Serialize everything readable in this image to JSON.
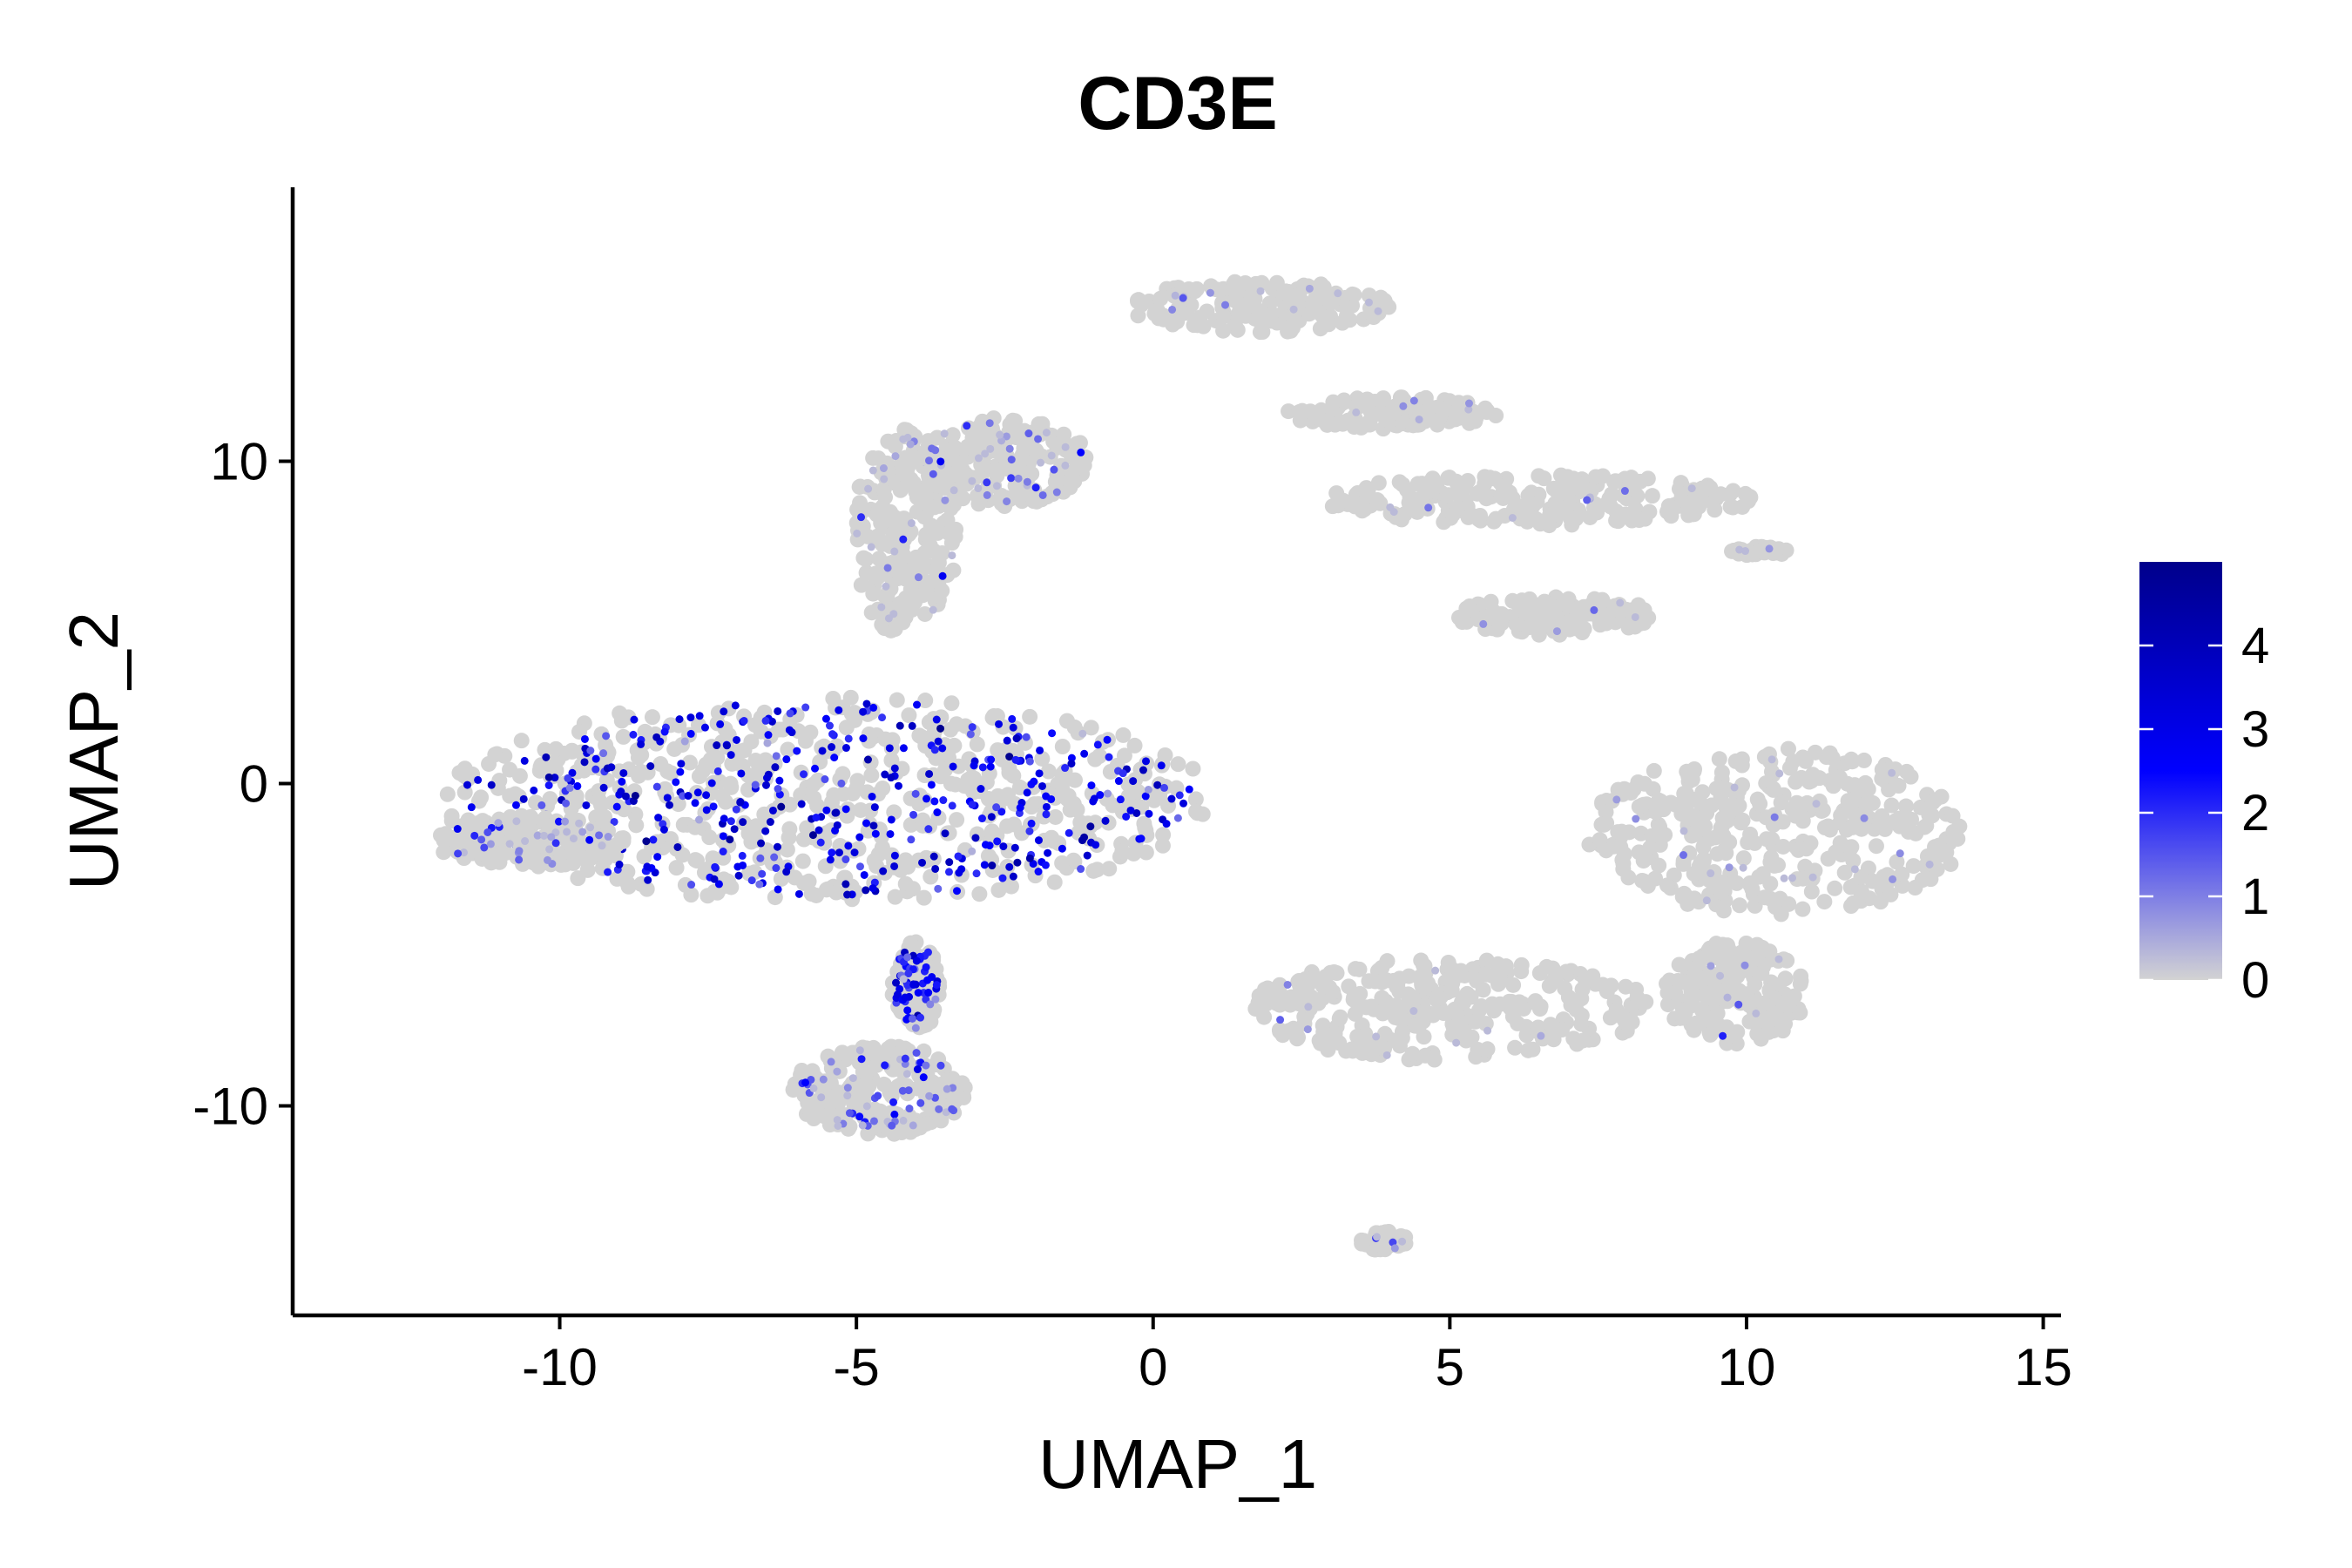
{
  "chart_data": {
    "type": "scatter",
    "title": "CD3E",
    "xlabel": "UMAP_1",
    "ylabel": "UMAP_2",
    "xlim": [
      -14.5,
      15.3
    ],
    "ylim": [
      -16.5,
      18.5
    ],
    "xticks": [
      -10,
      -5,
      0,
      5,
      10,
      15
    ],
    "xtick_labels": [
      "-10",
      "-5",
      "0",
      "5",
      "10",
      "15"
    ],
    "yticks": [
      -10,
      0,
      10
    ],
    "ytick_labels": [
      "-10",
      "0",
      "10"
    ],
    "grid": false,
    "legend_position": "right",
    "color_scale": {
      "name": "",
      "min": 0,
      "max": 5,
      "low_color": "#D3D3D3",
      "mid_color": "#0000FF",
      "high_color": "#00008B",
      "ticks": [
        0,
        1,
        2,
        3,
        4
      ],
      "tick_labels": [
        "0",
        "1",
        "2",
        "3",
        "4"
      ]
    },
    "clusters": [
      {
        "name": "",
        "cx": -5.5,
        "cy": -0.5,
        "rx": 6.5,
        "ry": 3.2,
        "expr": 2.6
      },
      {
        "name": "",
        "cx": -10.5,
        "cy": -1.8,
        "rx": 1.6,
        "ry": 0.8,
        "expr": 0.9
      },
      {
        "name": "",
        "cx": -4.2,
        "cy": 7.8,
        "rx": 0.9,
        "ry": 3.2,
        "expr": 0.4
      },
      {
        "name": "",
        "cx": -2.5,
        "cy": 10.0,
        "rx": 1.4,
        "ry": 1.4,
        "expr": 0.8
      },
      {
        "name": "",
        "cx": -4.6,
        "cy": -9.5,
        "rx": 1.5,
        "ry": 1.4,
        "expr": 1.2
      },
      {
        "name": "",
        "cx": -4.0,
        "cy": -6.3,
        "rx": 0.4,
        "ry": 1.4,
        "expr": 2.2
      },
      {
        "name": "",
        "cx": 1.8,
        "cy": 14.8,
        "rx": 2.2,
        "ry": 0.8,
        "expr": 0.2
      },
      {
        "name": "",
        "cx": 4.0,
        "cy": 11.5,
        "rx": 1.8,
        "ry": 0.5,
        "expr": 0.1
      },
      {
        "name": "",
        "cx": 6.5,
        "cy": 8.8,
        "rx": 3.6,
        "ry": 0.8,
        "expr": 0.1
      },
      {
        "name": "",
        "cx": 6.8,
        "cy": 5.2,
        "rx": 1.7,
        "ry": 0.6,
        "expr": 0.05
      },
      {
        "name": "",
        "cx": 10.2,
        "cy": 7.2,
        "rx": 0.5,
        "ry": 0.15,
        "expr": 0.05
      },
      {
        "name": "",
        "cx": 10.5,
        "cy": -1.5,
        "rx": 3.2,
        "ry": 2.6,
        "expr": 0.2
      },
      {
        "name": "",
        "cx": 5.0,
        "cy": -7.0,
        "rx": 3.4,
        "ry": 1.6,
        "expr": 0.1
      },
      {
        "name": "",
        "cx": 9.8,
        "cy": -6.5,
        "rx": 1.2,
        "ry": 1.6,
        "expr": 0.1
      },
      {
        "name": "",
        "cx": 3.9,
        "cy": -14.2,
        "rx": 0.4,
        "ry": 0.3,
        "expr": 0.2
      }
    ]
  }
}
